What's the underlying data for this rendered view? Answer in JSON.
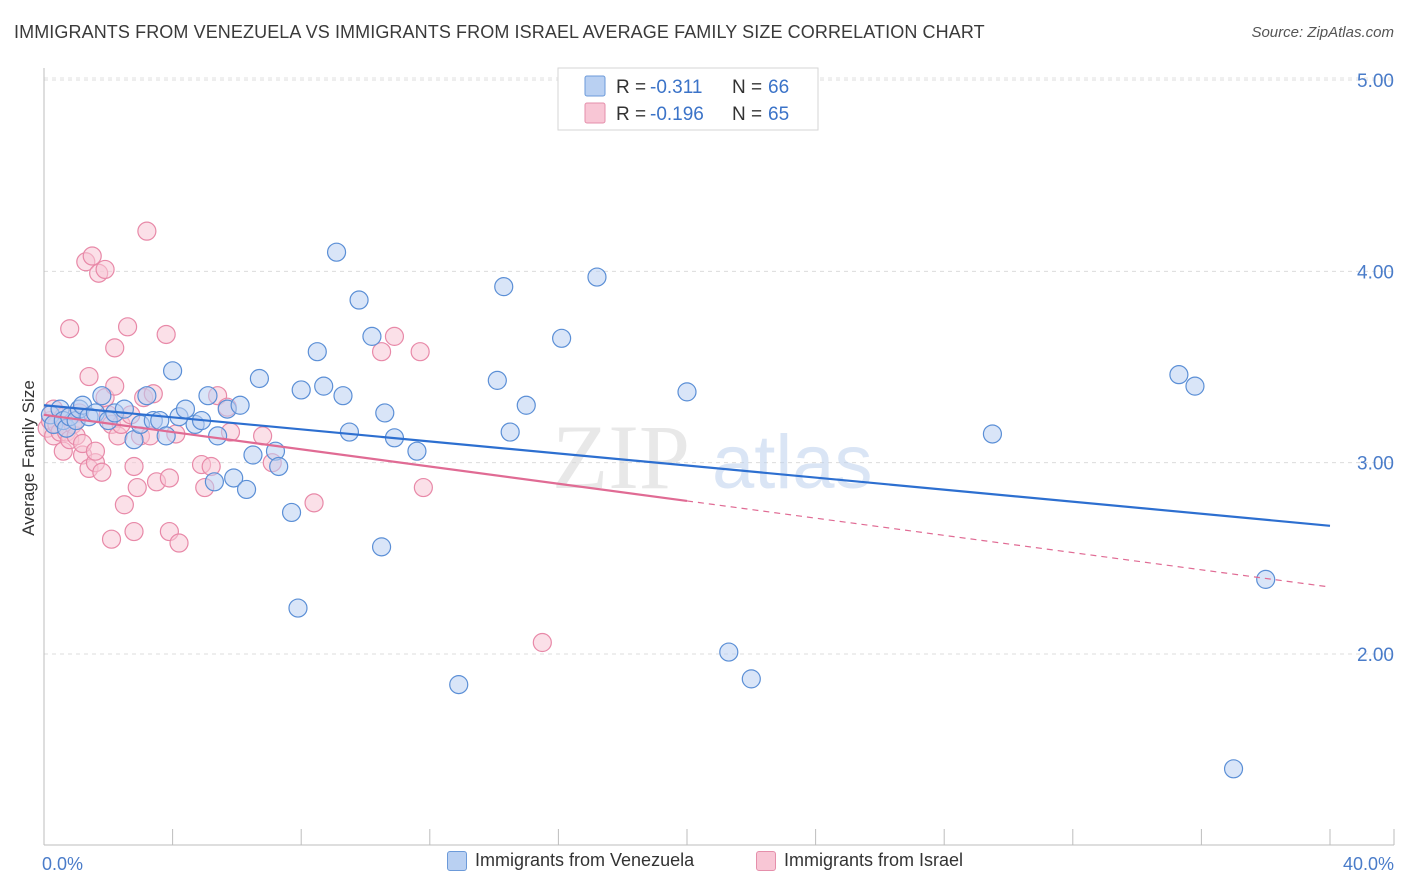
{
  "title": "IMMIGRANTS FROM VENEZUELA VS IMMIGRANTS FROM ISRAEL AVERAGE FAMILY SIZE CORRELATION CHART",
  "source": "Source: ZipAtlas.com",
  "watermark": {
    "zip": "ZIP",
    "atlas": "atlas"
  },
  "legend": {
    "rows": [
      {
        "r_label": "R =",
        "r_value": "-0.311",
        "n_label": "N =",
        "n_value": "66"
      },
      {
        "r_label": "R =",
        "r_value": "-0.196",
        "n_label": "N =",
        "n_value": "65"
      }
    ]
  },
  "bottom_legend": {
    "venezuela": "Immigrants from Venezuela",
    "israel": "Immigrants from Israel"
  },
  "chart_data": {
    "type": "scatter",
    "title": "IMMIGRANTS FROM VENEZUELA VS IMMIGRANTS FROM ISRAEL AVERAGE FAMILY SIZE CORRELATION CHART",
    "xlabel": "",
    "ylabel": "Average Family Size",
    "xlim": [
      0,
      40
    ],
    "ylim": [
      1.0,
      5.1
    ],
    "x_tick_labels": [
      "0.0%",
      "40.0%"
    ],
    "y_ticks": [
      2.0,
      3.0,
      4.0,
      5.0
    ],
    "y_tick_labels": [
      "2.00",
      "3.00",
      "4.00",
      "5.00"
    ],
    "grid": true,
    "legend_position": "top-center",
    "colors": {
      "venezuela": "#5b8fd6",
      "israel": "#e889a8",
      "venezuela_line": "#2d6fd0",
      "israel_line": "#e06b94"
    },
    "series": [
      {
        "name": "Immigrants from Venezuela",
        "color": "#5b8fd6",
        "r": -0.311,
        "n": 66,
        "trend": {
          "x": [
            0,
            40
          ],
          "y": [
            3.3,
            2.67
          ],
          "dashed_from": null
        },
        "points": [
          [
            0.2,
            3.25
          ],
          [
            0.3,
            3.2
          ],
          [
            0.5,
            3.28
          ],
          [
            0.6,
            3.22
          ],
          [
            0.7,
            3.18
          ],
          [
            0.8,
            3.24
          ],
          [
            1.0,
            3.22
          ],
          [
            1.1,
            3.28
          ],
          [
            1.2,
            3.3
          ],
          [
            1.4,
            3.24
          ],
          [
            1.6,
            3.26
          ],
          [
            1.8,
            3.35
          ],
          [
            2.0,
            3.22
          ],
          [
            2.2,
            3.26
          ],
          [
            2.5,
            3.28
          ],
          [
            2.8,
            3.12
          ],
          [
            3.0,
            3.2
          ],
          [
            3.2,
            3.35
          ],
          [
            3.4,
            3.22
          ],
          [
            3.6,
            3.22
          ],
          [
            3.8,
            3.14
          ],
          [
            4.0,
            3.48
          ],
          [
            4.2,
            3.24
          ],
          [
            4.4,
            3.28
          ],
          [
            4.7,
            3.2
          ],
          [
            4.9,
            3.22
          ],
          [
            5.1,
            3.35
          ],
          [
            5.3,
            2.9
          ],
          [
            5.4,
            3.14
          ],
          [
            5.7,
            3.28
          ],
          [
            5.9,
            2.92
          ],
          [
            6.1,
            3.3
          ],
          [
            6.3,
            2.86
          ],
          [
            6.5,
            3.04
          ],
          [
            6.7,
            3.44
          ],
          [
            7.2,
            3.06
          ],
          [
            7.3,
            2.98
          ],
          [
            7.7,
            2.74
          ],
          [
            7.9,
            2.24
          ],
          [
            8.0,
            3.38
          ],
          [
            8.5,
            3.58
          ],
          [
            8.7,
            3.4
          ],
          [
            9.1,
            4.1
          ],
          [
            9.3,
            3.35
          ],
          [
            9.5,
            3.16
          ],
          [
            9.8,
            3.85
          ],
          [
            10.2,
            3.66
          ],
          [
            10.5,
            2.56
          ],
          [
            10.6,
            3.26
          ],
          [
            10.9,
            3.13
          ],
          [
            11.6,
            3.06
          ],
          [
            12.9,
            1.84
          ],
          [
            14.1,
            3.43
          ],
          [
            14.3,
            3.92
          ],
          [
            14.5,
            3.16
          ],
          [
            15.0,
            3.3
          ],
          [
            16.1,
            3.65
          ],
          [
            17.2,
            3.97
          ],
          [
            20.0,
            3.37
          ],
          [
            21.3,
            2.01
          ],
          [
            22.0,
            1.87
          ],
          [
            29.5,
            3.15
          ],
          [
            35.3,
            3.46
          ],
          [
            35.8,
            3.4
          ],
          [
            37.0,
            1.4
          ],
          [
            38.0,
            2.39
          ]
        ]
      },
      {
        "name": "Immigrants from Israel",
        "color": "#e889a8",
        "r": -0.196,
        "n": 65,
        "trend": {
          "x": [
            0,
            40
          ],
          "y": [
            3.25,
            2.35
          ],
          "dashed_from": 20
        },
        "points": [
          [
            0.1,
            3.18
          ],
          [
            0.2,
            3.22
          ],
          [
            0.3,
            3.14
          ],
          [
            0.3,
            3.28
          ],
          [
            0.4,
            3.2
          ],
          [
            0.5,
            3.16
          ],
          [
            0.6,
            3.06
          ],
          [
            0.6,
            3.24
          ],
          [
            0.7,
            3.16
          ],
          [
            0.8,
            3.12
          ],
          [
            0.8,
            3.7
          ],
          [
            0.9,
            3.2
          ],
          [
            1.0,
            3.14
          ],
          [
            1.1,
            3.26
          ],
          [
            1.2,
            3.04
          ],
          [
            1.2,
            3.1
          ],
          [
            1.3,
            4.05
          ],
          [
            1.4,
            3.45
          ],
          [
            1.4,
            2.97
          ],
          [
            1.5,
            4.08
          ],
          [
            1.6,
            3.0
          ],
          [
            1.6,
            3.06
          ],
          [
            1.7,
            3.99
          ],
          [
            1.8,
            2.95
          ],
          [
            1.9,
            3.34
          ],
          [
            1.9,
            4.01
          ],
          [
            2.0,
            3.25
          ],
          [
            2.1,
            3.2
          ],
          [
            2.1,
            2.6
          ],
          [
            2.2,
            3.4
          ],
          [
            2.2,
            3.6
          ],
          [
            2.3,
            3.14
          ],
          [
            2.4,
            3.2
          ],
          [
            2.5,
            2.78
          ],
          [
            2.6,
            3.71
          ],
          [
            2.7,
            3.25
          ],
          [
            2.8,
            2.98
          ],
          [
            2.8,
            2.64
          ],
          [
            2.9,
            2.87
          ],
          [
            3.0,
            3.14
          ],
          [
            3.1,
            3.34
          ],
          [
            3.2,
            4.21
          ],
          [
            3.3,
            3.14
          ],
          [
            3.4,
            3.36
          ],
          [
            3.5,
            2.9
          ],
          [
            3.8,
            3.67
          ],
          [
            3.9,
            2.64
          ],
          [
            3.9,
            2.92
          ],
          [
            4.1,
            3.15
          ],
          [
            4.2,
            2.58
          ],
          [
            4.9,
            2.99
          ],
          [
            5.0,
            2.87
          ],
          [
            5.2,
            2.98
          ],
          [
            5.4,
            3.35
          ],
          [
            5.7,
            3.29
          ],
          [
            5.8,
            3.16
          ],
          [
            6.8,
            3.14
          ],
          [
            7.1,
            3.0
          ],
          [
            8.4,
            2.79
          ],
          [
            10.5,
            3.58
          ],
          [
            10.9,
            3.66
          ],
          [
            11.7,
            3.58
          ],
          [
            11.8,
            2.87
          ],
          [
            15.5,
            2.06
          ],
          [
            1.0,
            3.22
          ]
        ]
      }
    ]
  }
}
